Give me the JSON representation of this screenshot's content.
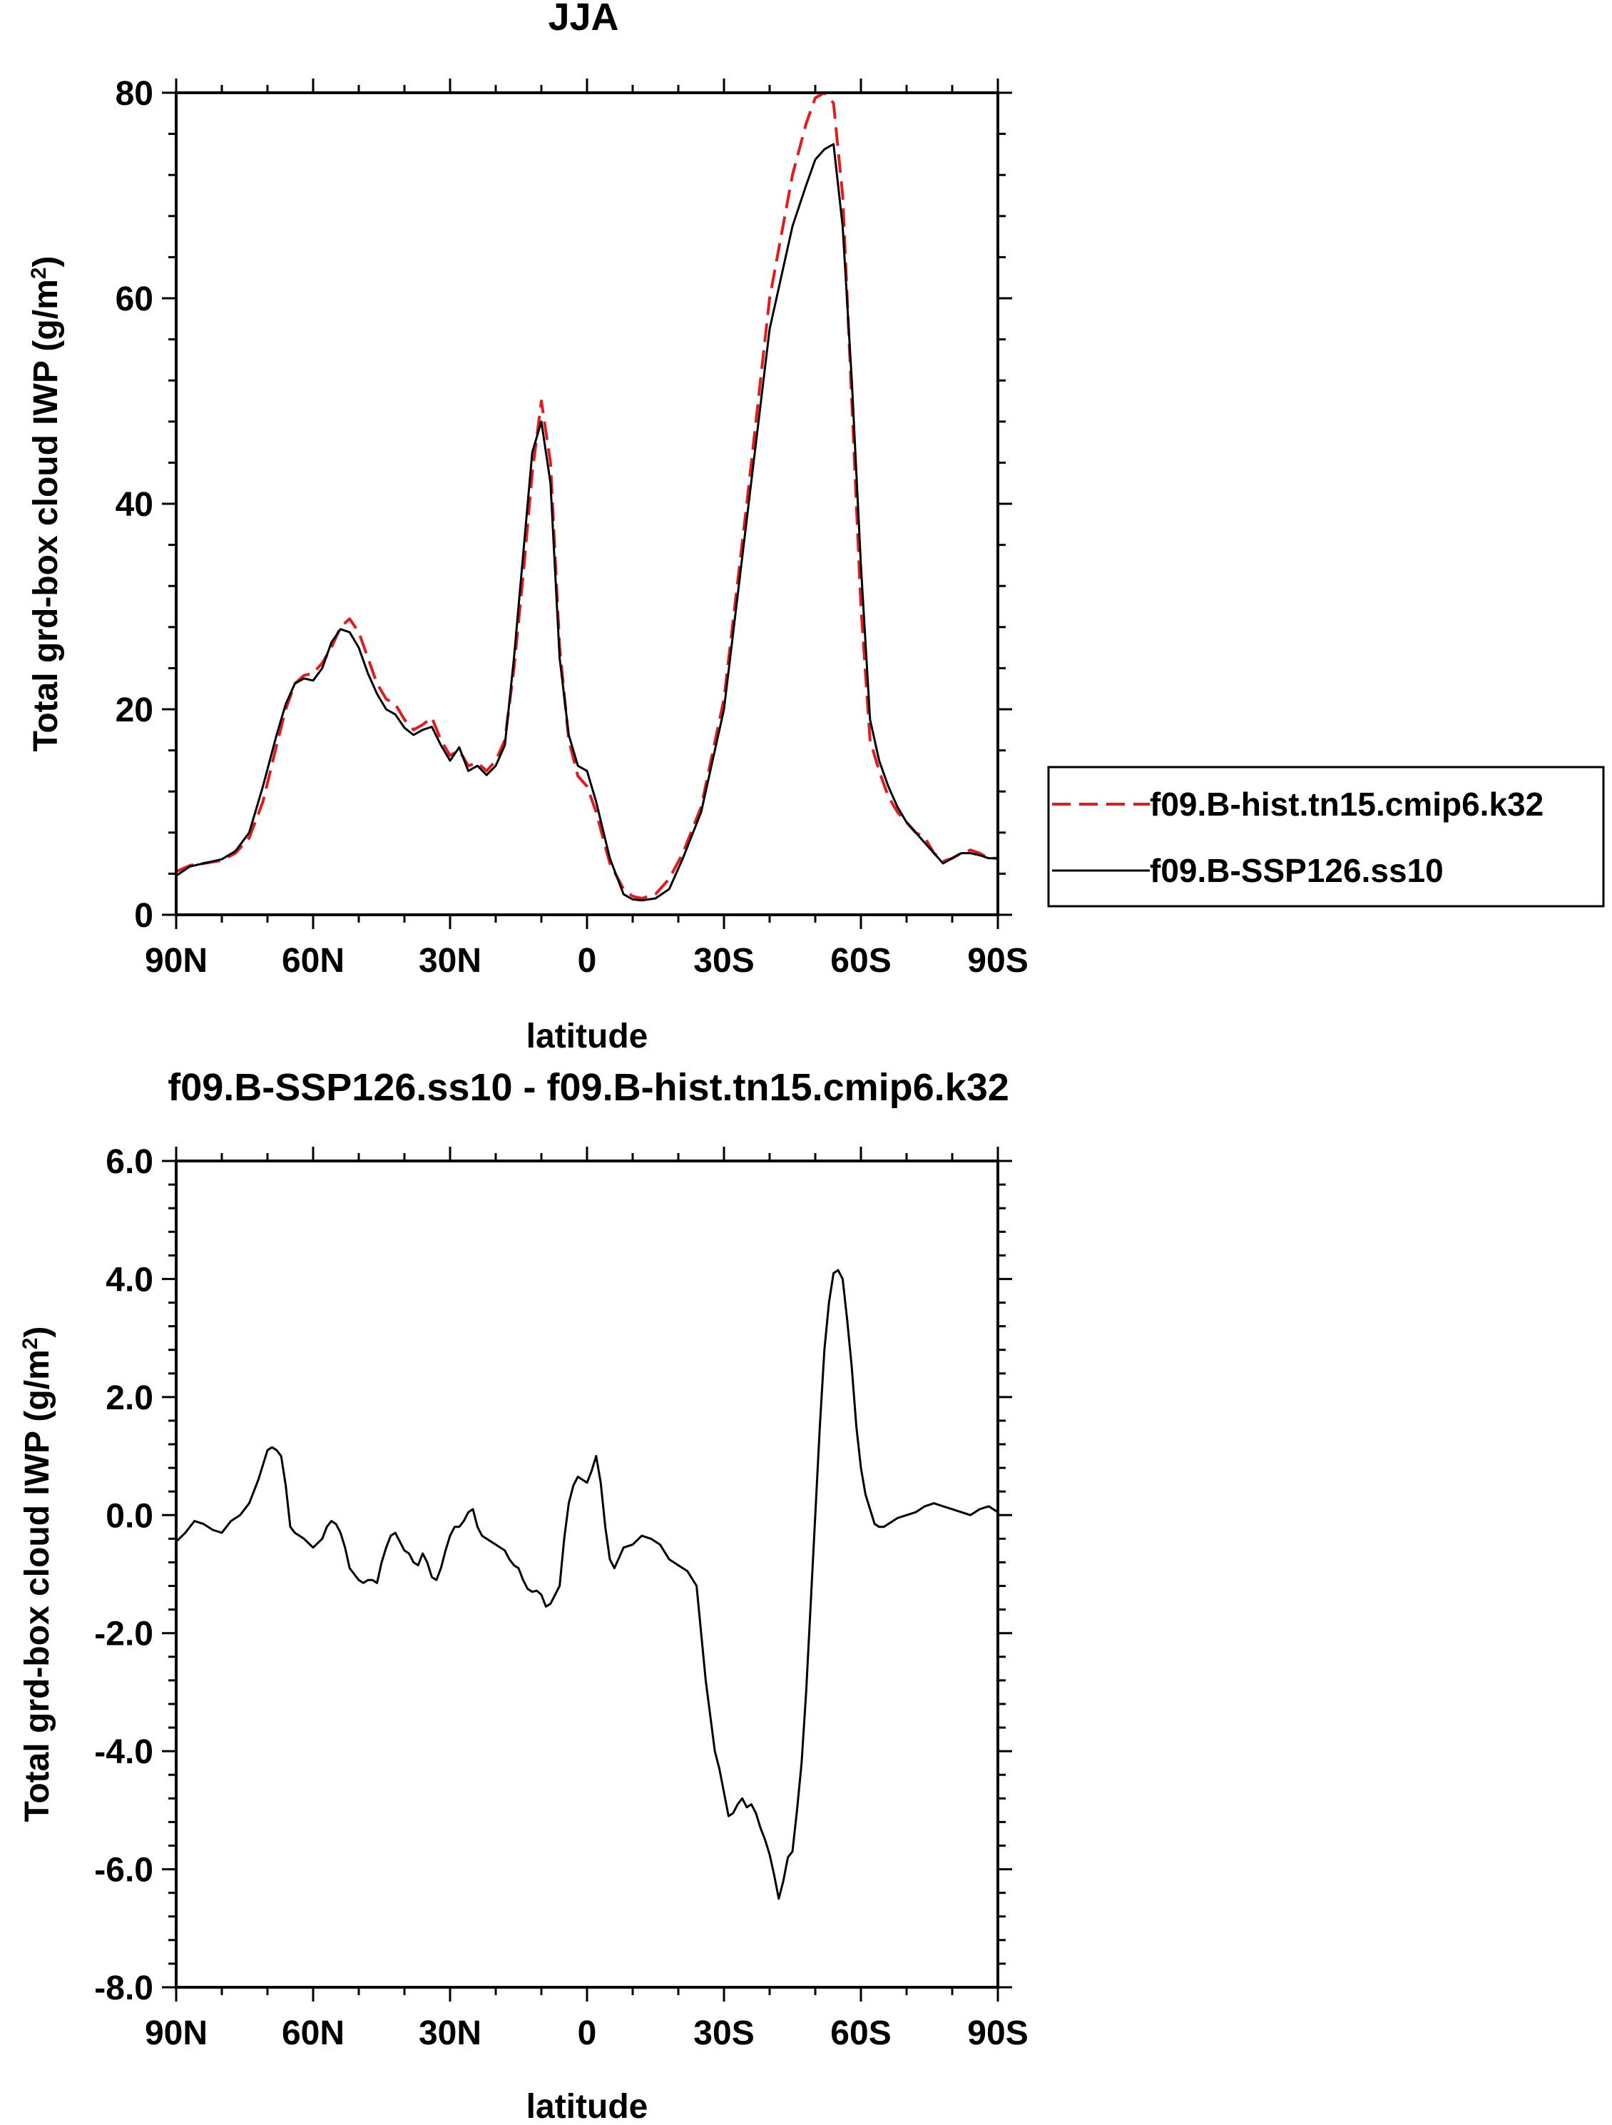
{
  "chart_data": [
    {
      "type": "line",
      "title": "JJA",
      "xlabel": "latitude",
      "ylabel_main": "Total grd-box cloud IWP (g/m",
      "ylabel_sup": "2",
      "ylabel_close": ")",
      "xlim": [
        90,
        -90
      ],
      "ylim": [
        0,
        80
      ],
      "x_ticks": [
        90,
        60,
        30,
        0,
        -30,
        -60,
        -90
      ],
      "x_tick_labels": [
        "90N",
        "60N",
        "30N",
        "0",
        "30S",
        "60S",
        "90S"
      ],
      "y_ticks": [
        0,
        20,
        40,
        60,
        80
      ],
      "y_tick_labels": [
        "0",
        "20",
        "40",
        "60",
        "80"
      ],
      "legend_position": "right",
      "series": [
        {
          "name": "f09.B-hist.tn15.cmip6.k32",
          "color": "#e41a1c",
          "dash": "dashed",
          "x": [
            90,
            87,
            84,
            80,
            77,
            74,
            71,
            68,
            66,
            64,
            62,
            60,
            58,
            56,
            54,
            52,
            50,
            48,
            46,
            44,
            42,
            40,
            38,
            36,
            34,
            32,
            30,
            28,
            26,
            24,
            22,
            20,
            18,
            16,
            14,
            12,
            10,
            8,
            6,
            4,
            2,
            0,
            -2,
            -5,
            -8,
            -10,
            -12,
            -15,
            -18,
            -21,
            -25,
            -30,
            -35,
            -40,
            -45,
            -48,
            -50,
            -52,
            -54,
            -56,
            -58,
            -60,
            -62,
            -64,
            -66,
            -68,
            -70,
            -72,
            -74,
            -76,
            -78,
            -80,
            -82,
            -84,
            -86,
            -88,
            -90
          ],
          "y": [
            4.2,
            4.8,
            5.0,
            5.3,
            6.0,
            7.5,
            11.0,
            16.5,
            20.0,
            22.5,
            23.3,
            23.5,
            24.5,
            26.0,
            28.0,
            28.8,
            27.5,
            25.0,
            22.5,
            21.0,
            20.5,
            19.0,
            18.0,
            18.5,
            19.2,
            17.0,
            15.5,
            16.0,
            14.5,
            14.8,
            14.0,
            15.0,
            17.0,
            24.0,
            33.0,
            43.0,
            50.0,
            44.0,
            26.0,
            17.0,
            13.5,
            12.5,
            10.0,
            5.0,
            2.5,
            1.8,
            1.6,
            2.0,
            3.5,
            6.0,
            10.5,
            21.0,
            40.0,
            60.0,
            72.0,
            77.0,
            79.5,
            80.0,
            79.0,
            70.0,
            50.0,
            30.0,
            17.0,
            14.0,
            11.5,
            10.0,
            9.0,
            8.0,
            7.5,
            6.0,
            5.2,
            5.5,
            6.0,
            6.3,
            6.0,
            5.5,
            5.5
          ]
        },
        {
          "name": "f09.B-SSP126.ss10",
          "color": "#000000",
          "dash": "solid",
          "x": [
            90,
            87,
            84,
            80,
            77,
            74,
            71,
            68,
            66,
            64,
            62,
            60,
            58,
            56,
            54,
            52,
            50,
            48,
            46,
            44,
            42,
            40,
            38,
            36,
            34,
            32,
            30,
            28,
            26,
            24,
            22,
            20,
            18,
            16,
            14,
            12,
            10,
            8,
            6,
            4,
            2,
            0,
            -2,
            -5,
            -8,
            -10,
            -12,
            -15,
            -18,
            -21,
            -25,
            -30,
            -35,
            -40,
            -45,
            -48,
            -50,
            -52,
            -54,
            -56,
            -58,
            -60,
            -62,
            -64,
            -66,
            -68,
            -70,
            -72,
            -74,
            -76,
            -78,
            -80,
            -82,
            -84,
            -86,
            -88,
            -90
          ],
          "y": [
            3.8,
            4.7,
            5.0,
            5.4,
            6.2,
            8.0,
            12.5,
            17.5,
            20.5,
            22.5,
            23.0,
            22.8,
            24.0,
            26.5,
            27.8,
            27.5,
            26.0,
            23.5,
            21.5,
            20.0,
            19.5,
            18.2,
            17.5,
            18.0,
            18.3,
            16.5,
            15.0,
            16.3,
            14.0,
            14.5,
            13.6,
            14.5,
            16.5,
            25.0,
            35.0,
            45.0,
            48.0,
            42.0,
            25.0,
            17.5,
            14.5,
            14.0,
            11.0,
            5.5,
            2.0,
            1.5,
            1.4,
            1.6,
            2.5,
            5.5,
            10.0,
            20.0,
            38.5,
            57.0,
            67.0,
            71.0,
            73.5,
            74.5,
            75.0,
            67.0,
            52.0,
            34.0,
            19.0,
            15.0,
            12.5,
            10.5,
            9.0,
            8.0,
            7.0,
            6.0,
            5.0,
            5.5,
            6.0,
            6.0,
            5.8,
            5.5,
            5.5
          ]
        }
      ]
    },
    {
      "type": "line",
      "title": "f09.B-SSP126.ss10 - f09.B-hist.tn15.cmip6.k32",
      "xlabel": "latitude",
      "ylabel_main": "Total grd-box cloud IWP (g/m",
      "ylabel_sup": "2",
      "ylabel_close": ")",
      "xlim": [
        90,
        -90
      ],
      "ylim": [
        -8,
        6
      ],
      "x_ticks": [
        90,
        60,
        30,
        0,
        -30,
        -60,
        -90
      ],
      "x_tick_labels": [
        "90N",
        "60N",
        "30N",
        "0",
        "30S",
        "60S",
        "90S"
      ],
      "y_ticks": [
        -8,
        -6,
        -4,
        -2,
        0,
        2,
        4,
        6
      ],
      "y_tick_labels": [
        "-8.0",
        "-6.0",
        "-4.0",
        "-2.0",
        "0.0",
        "2.0",
        "4.0",
        "6.0"
      ],
      "series": [
        {
          "color": "#000000",
          "dash": "solid",
          "x": [
            90,
            88,
            86,
            84,
            82,
            80,
            78,
            76,
            74,
            72,
            70,
            69,
            68,
            67,
            66,
            65,
            64,
            62,
            60,
            58,
            57,
            56,
            55,
            54,
            53,
            52,
            51,
            50,
            49,
            48,
            47,
            46,
            45,
            44,
            43,
            42,
            41,
            40,
            39,
            38,
            37,
            36,
            35,
            34,
            33,
            32,
            31,
            30,
            29,
            28,
            27,
            26,
            25,
            24,
            23,
            22,
            21,
            20,
            19,
            18,
            17,
            16,
            15,
            14,
            13,
            12,
            11,
            10,
            9,
            8,
            7,
            6,
            5,
            4,
            3,
            2,
            1,
            0,
            -1,
            -2,
            -3,
            -4,
            -5,
            -6,
            -8,
            -10,
            -12,
            -14,
            -16,
            -18,
            -20,
            -22,
            -24,
            -26,
            -28,
            -29,
            -30,
            -31,
            -32,
            -33,
            -34,
            -35,
            -36,
            -37,
            -38,
            -39,
            -40,
            -41,
            -42,
            -43,
            -44,
            -45,
            -46,
            -47,
            -48,
            -49,
            -50,
            -51,
            -52,
            -53,
            -54,
            -55,
            -56,
            -57,
            -58,
            -59,
            -60,
            -61,
            -62,
            -63,
            -64,
            -65,
            -66,
            -67,
            -68,
            -70,
            -72,
            -74,
            -76,
            -78,
            -80,
            -82,
            -84,
            -86,
            -88,
            -90
          ],
          "y": [
            -0.45,
            -0.3,
            -0.1,
            -0.15,
            -0.25,
            -0.3,
            -0.1,
            0.0,
            0.2,
            0.6,
            1.1,
            1.15,
            1.1,
            1.0,
            0.5,
            -0.2,
            -0.3,
            -0.4,
            -0.55,
            -0.4,
            -0.2,
            -0.1,
            -0.15,
            -0.3,
            -0.55,
            -0.9,
            -1.0,
            -1.1,
            -1.15,
            -1.1,
            -1.1,
            -1.15,
            -0.8,
            -0.55,
            -0.35,
            -0.3,
            -0.45,
            -0.6,
            -0.65,
            -0.8,
            -0.85,
            -0.65,
            -0.8,
            -1.05,
            -1.1,
            -0.9,
            -0.6,
            -0.35,
            -0.2,
            -0.2,
            -0.1,
            0.05,
            0.1,
            -0.2,
            -0.35,
            -0.4,
            -0.45,
            -0.5,
            -0.55,
            -0.6,
            -0.75,
            -0.85,
            -0.9,
            -1.1,
            -1.25,
            -1.3,
            -1.28,
            -1.35,
            -1.55,
            -1.5,
            -1.35,
            -1.2,
            -0.4,
            0.2,
            0.5,
            0.65,
            0.6,
            0.55,
            0.75,
            1.0,
            0.55,
            -0.2,
            -0.75,
            -0.9,
            -0.55,
            -0.5,
            -0.35,
            -0.4,
            -0.5,
            -0.75,
            -0.85,
            -0.95,
            -1.2,
            -2.8,
            -4.0,
            -4.3,
            -4.7,
            -5.1,
            -5.05,
            -4.9,
            -4.8,
            -4.95,
            -4.9,
            -5.05,
            -5.3,
            -5.5,
            -5.75,
            -6.1,
            -6.5,
            -6.2,
            -5.8,
            -5.7,
            -5.0,
            -4.2,
            -3.0,
            -1.5,
            0.0,
            1.5,
            2.8,
            3.6,
            4.1,
            4.15,
            4.0,
            3.3,
            2.5,
            1.5,
            0.8,
            0.35,
            0.1,
            -0.15,
            -0.2,
            -0.2,
            -0.15,
            -0.1,
            -0.05,
            0.0,
            0.05,
            0.15,
            0.2,
            0.15,
            0.1,
            0.05,
            0.0,
            0.1,
            0.15,
            0.05
          ]
        }
      ]
    }
  ]
}
